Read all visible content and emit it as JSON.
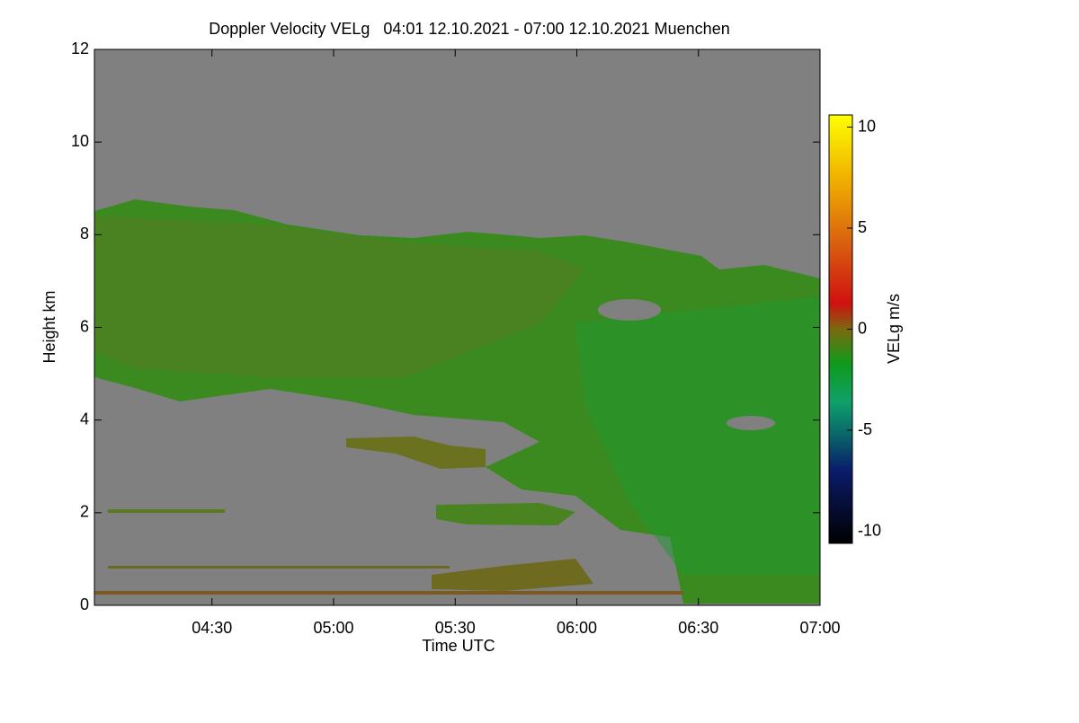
{
  "chart_data": {
    "type": "heatmap",
    "title": "Doppler Velocity VELg   04:01 12.10.2021 - 07:00 12.10.2021 Muenchen",
    "x_label": "Time UTC",
    "y_label": "Height km",
    "colorbar_label": "VELg m/s",
    "xlim": [
      241,
      420
    ],
    "xticks": [
      {
        "value": 270,
        "label": "04:30"
      },
      {
        "value": 300,
        "label": "05:00"
      },
      {
        "value": 330,
        "label": "05:30"
      },
      {
        "value": 360,
        "label": "06:00"
      },
      {
        "value": 390,
        "label": "06:30"
      },
      {
        "value": 420,
        "label": "07:00"
      }
    ],
    "ylim": [
      0,
      12
    ],
    "yticks": [
      0,
      2,
      4,
      6,
      8,
      10,
      12
    ],
    "zlim": [
      -10.6,
      10.6
    ],
    "zticks": [
      -10,
      -5,
      0,
      5,
      10
    ]
  }
}
